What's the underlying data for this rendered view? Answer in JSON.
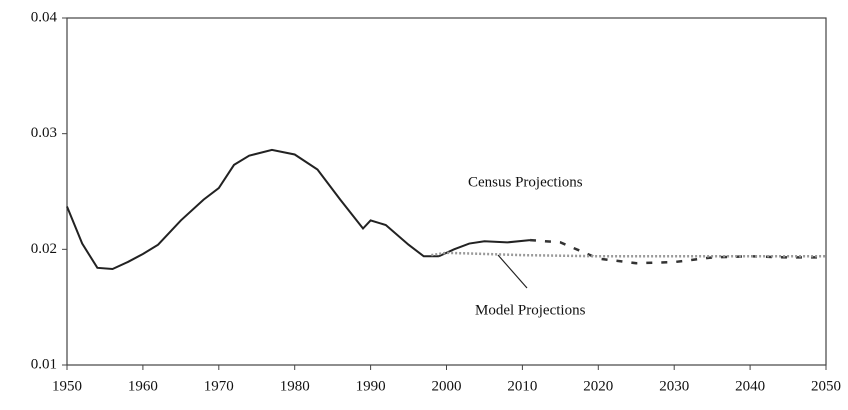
{
  "chart_data": {
    "type": "line",
    "annotations": [
      "Census Projections",
      "Model Projections"
    ],
    "xlim": [
      1950,
      2050
    ],
    "xticks": [
      1950,
      1960,
      1970,
      1980,
      1990,
      2000,
      2010,
      2020,
      2030,
      2040,
      2050
    ],
    "ylim": [
      0.01,
      0.04
    ],
    "yticks": [
      0.01,
      0.02,
      0.03,
      0.04
    ],
    "grid": false,
    "series": [
      {
        "color": "#222222",
        "style": "solid",
        "x": [
          1950,
          1952,
          1954,
          1956,
          1958,
          1960,
          1962,
          1965,
          1968,
          1970,
          1972,
          1974,
          1977,
          1980,
          1983,
          1986,
          1989,
          1990,
          1992,
          1995,
          1997,
          1999
        ],
        "values": [
          0.0237,
          0.0205,
          0.0184,
          0.0183,
          0.0189,
          0.0196,
          0.0204,
          0.0225,
          0.0243,
          0.0253,
          0.0273,
          0.0281,
          0.0286,
          0.0282,
          0.0269,
          0.0243,
          0.0218,
          0.0225,
          0.0221,
          0.0204,
          0.0194,
          0.0194
        ]
      },
      {
        "color": "#222222",
        "style": "solid",
        "x": [
          1999,
          2001,
          2003,
          2005,
          2008,
          2011
        ],
        "values": [
          0.0194,
          0.02,
          0.0205,
          0.0207,
          0.0206,
          0.0208
        ]
      },
      {
        "color": "#333333",
        "style": "dashed",
        "x": [
          2011,
          2015,
          2020,
          2025,
          2030,
          2035,
          2040,
          2045,
          2050
        ],
        "values": [
          0.0208,
          0.0206,
          0.0192,
          0.0188,
          0.0189,
          0.0193,
          0.0194,
          0.0193,
          0.0193
        ]
      },
      {
        "color": "#999999",
        "style": "dotted",
        "x": [
          1998,
          2000,
          2010,
          2020,
          2030,
          2040,
          2050
        ],
        "values": [
          0.0195,
          0.0197,
          0.0195,
          0.0194,
          0.0194,
          0.0194,
          0.0194
        ]
      }
    ]
  }
}
